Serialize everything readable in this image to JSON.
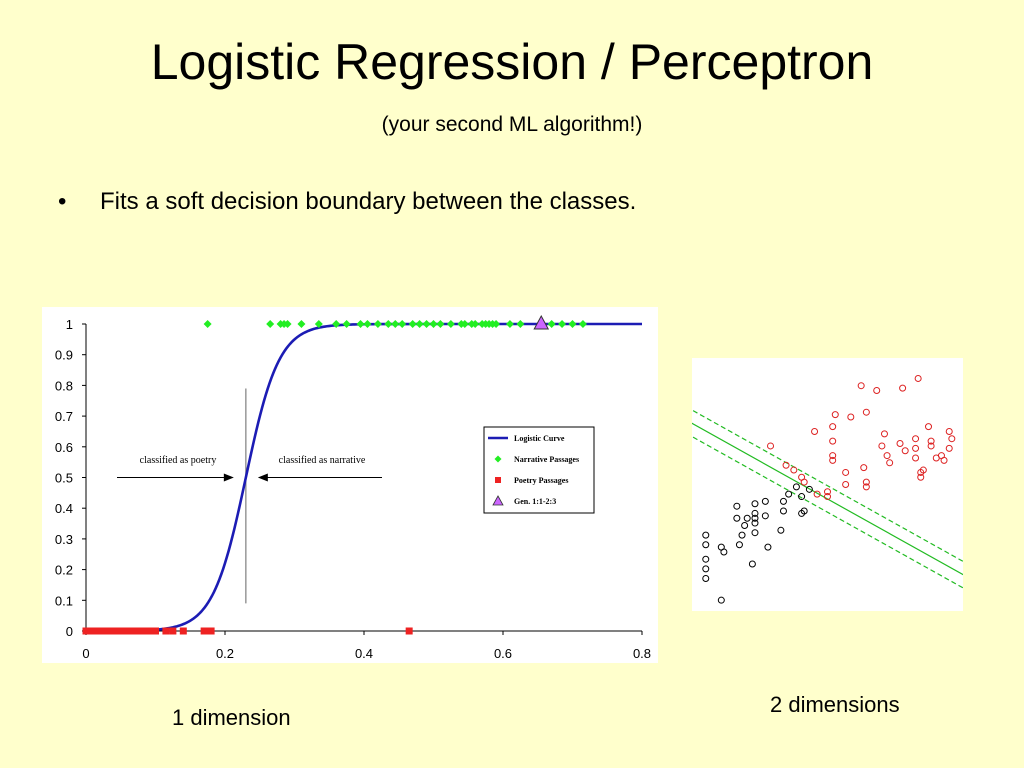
{
  "title": "Logistic Regression / Perceptron",
  "subtitle": "(your second ML algorithm!)",
  "bullet": {
    "marker": "•",
    "text": "Fits a soft decision boundary between the classes."
  },
  "captions": {
    "one_dim": "1 dimension",
    "two_dim": "2 dimensions"
  },
  "chart_data": [
    {
      "type": "scatter",
      "xlim": [
        0,
        0.8
      ],
      "ylim": [
        0,
        1
      ],
      "x_ticks": [
        "0",
        "0.2",
        "0.4",
        "0.6",
        "0.8"
      ],
      "y_ticks": [
        "0",
        "0.1",
        "0.2",
        "0.3",
        "0.4",
        "0.5",
        "0.6",
        "0.7",
        "0.8",
        "0.9",
        "1"
      ],
      "grid": false,
      "legend_position": "right",
      "curve": {
        "name": "Logistic Curve",
        "midpoint": 0.23,
        "steepness": 42,
        "color": "#1c1cb4"
      },
      "series": [
        {
          "name": "Narrative Passages",
          "marker": "diamond",
          "color": "#22ee22",
          "y": 1,
          "x": [
            0.175,
            0.265,
            0.28,
            0.285,
            0.29,
            0.31,
            0.335,
            0.36,
            0.375,
            0.395,
            0.405,
            0.42,
            0.435,
            0.445,
            0.455,
            0.47,
            0.48,
            0.49,
            0.5,
            0.51,
            0.525,
            0.54,
            0.545,
            0.555,
            0.56,
            0.57,
            0.575,
            0.58,
            0.585,
            0.59,
            0.61,
            0.625,
            0.67,
            0.685,
            0.7,
            0.715
          ]
        },
        {
          "name": "Poetry Passages",
          "marker": "square",
          "color": "#ee2222",
          "y": 0,
          "x": [
            0.0,
            0.005,
            0.01,
            0.015,
            0.02,
            0.025,
            0.03,
            0.035,
            0.04,
            0.045,
            0.05,
            0.055,
            0.06,
            0.065,
            0.07,
            0.075,
            0.08,
            0.085,
            0.09,
            0.1,
            0.115,
            0.125,
            0.14,
            0.17,
            0.175,
            0.18,
            0.465
          ]
        },
        {
          "name": "Gen. 1:1-2:3",
          "marker": "triangle",
          "color": "#cc66ff",
          "y": 1,
          "x": [
            0.655
          ]
        }
      ],
      "decision_boundary_x": 0.23,
      "annotations": [
        {
          "text": "classified as poetry",
          "side": "left"
        },
        {
          "text": "classified as narrative",
          "side": "right"
        }
      ]
    },
    {
      "type": "scatter",
      "xlim": [
        0,
        10
      ],
      "ylim": [
        0,
        10
      ],
      "grid": false,
      "series": [
        {
          "name": "",
          "marker": "circle",
          "color": "#000000",
          "points": [
            [
              0.3,
              2.9
            ],
            [
              0.3,
              2.5
            ],
            [
              0.3,
              1.9
            ],
            [
              0.3,
              1.5
            ],
            [
              0.3,
              1.1
            ],
            [
              0.9,
              2.4
            ],
            [
              1.0,
              2.2
            ],
            [
              0.9,
              0.2
            ],
            [
              1.6,
              2.5
            ],
            [
              1.7,
              2.9
            ],
            [
              1.8,
              3.3
            ],
            [
              1.9,
              3.6
            ],
            [
              1.5,
              3.6
            ],
            [
              1.5,
              4.1
            ],
            [
              2.2,
              3.6
            ],
            [
              2.2,
              3.8
            ],
            [
              2.2,
              4.2
            ],
            [
              2.2,
              3.0
            ],
            [
              2.1,
              1.7
            ],
            [
              2.2,
              3.4
            ],
            [
              2.6,
              4.3
            ],
            [
              2.6,
              3.7
            ],
            [
              2.7,
              2.4
            ],
            [
              3.2,
              3.1
            ],
            [
              3.3,
              4.3
            ],
            [
              3.3,
              3.9
            ],
            [
              3.5,
              4.6
            ],
            [
              3.8,
              4.9
            ],
            [
              4.3,
              4.8
            ],
            [
              4.0,
              3.8
            ],
            [
              4.1,
              3.9
            ],
            [
              4.0,
              4.5
            ]
          ]
        },
        {
          "name": "",
          "marker": "circle",
          "color": "#dd2222",
          "points": [
            [
              2.8,
              6.6
            ],
            [
              3.4,
              5.8
            ],
            [
              3.7,
              5.6
            ],
            [
              4.0,
              5.3
            ],
            [
              4.1,
              5.1
            ],
            [
              4.5,
              7.2
            ],
            [
              4.6,
              4.6
            ],
            [
              5.0,
              4.5
            ],
            [
              5.0,
              4.7
            ],
            [
              5.2,
              6.0
            ],
            [
              5.2,
              6.2
            ],
            [
              5.2,
              6.8
            ],
            [
              5.2,
              7.4
            ],
            [
              5.3,
              7.9
            ],
            [
              5.7,
              5.5
            ],
            [
              5.7,
              5.0
            ],
            [
              5.9,
              7.8
            ],
            [
              6.4,
              5.7
            ],
            [
              6.5,
              5.1
            ],
            [
              6.5,
              4.9
            ],
            [
              6.3,
              9.1
            ],
            [
              6.5,
              8.0
            ],
            [
              6.9,
              8.9
            ],
            [
              7.2,
              7.1
            ],
            [
              7.1,
              6.6
            ],
            [
              7.3,
              6.2
            ],
            [
              7.4,
              5.9
            ],
            [
              7.8,
              6.7
            ],
            [
              7.9,
              9.0
            ],
            [
              8.0,
              6.4
            ],
            [
              8.4,
              6.1
            ],
            [
              8.4,
              6.9
            ],
            [
              8.4,
              6.5
            ],
            [
              8.6,
              5.5
            ],
            [
              8.6,
              5.3
            ],
            [
              8.7,
              5.6
            ],
            [
              8.9,
              7.4
            ],
            [
              9.0,
              6.6
            ],
            [
              9.0,
              6.8
            ],
            [
              9.4,
              6.2
            ],
            [
              9.5,
              6.0
            ],
            [
              9.7,
              6.5
            ],
            [
              9.7,
              7.2
            ],
            [
              9.8,
              6.9
            ],
            [
              8.5,
              9.4
            ],
            [
              9.2,
              6.1
            ]
          ]
        }
      ],
      "boundary": {
        "color": "#22bb22",
        "slope": -0.6,
        "intercept": 7.4,
        "margin": 0.55
      }
    }
  ]
}
